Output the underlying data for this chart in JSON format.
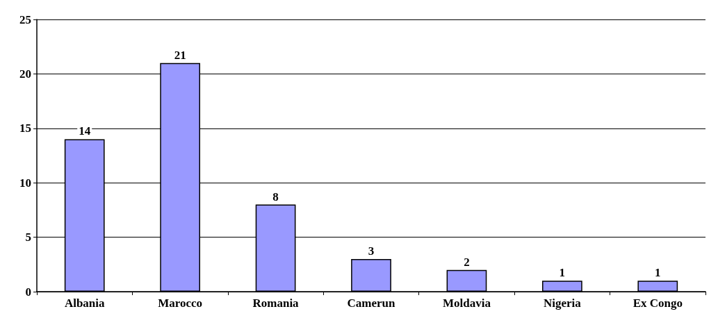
{
  "chart_data": {
    "type": "bar",
    "categories": [
      "Albania",
      "Marocco",
      "Romania",
      "Camerun",
      "Moldavia",
      "Nigeria",
      "Ex Congo"
    ],
    "values": [
      14,
      21,
      8,
      3,
      2,
      1,
      1
    ],
    "color": "#9999ff",
    "ylim": [
      0,
      25
    ],
    "yticks": [
      0,
      5,
      10,
      15,
      20,
      25
    ],
    "grid": "y",
    "data_labels": true
  }
}
